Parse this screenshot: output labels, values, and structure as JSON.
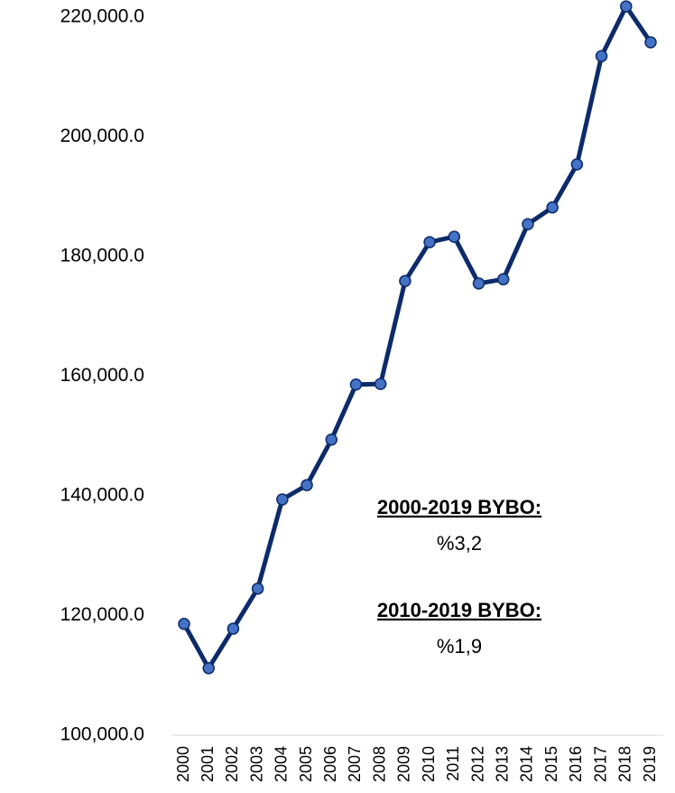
{
  "chart_data": {
    "type": "line",
    "categories": [
      "2000",
      "2001",
      "2002",
      "2003",
      "2004",
      "2005",
      "2006",
      "2007",
      "2008",
      "2009",
      "2010",
      "2011",
      "2012",
      "2013",
      "2014",
      "2015",
      "2016",
      "2017",
      "2018",
      "2019"
    ],
    "series": [
      {
        "color": "#0d2b6b",
        "marker_color": "#4472c4",
        "values": [
          118600,
          111200,
          117800,
          124500,
          139400,
          141800,
          149400,
          158600,
          158700,
          175900,
          182400,
          183300,
          175500,
          176200,
          185400,
          188200,
          195400,
          213500,
          221800,
          215800
        ]
      }
    ],
    "ylim": [
      100000,
      222000
    ],
    "yticks": [
      {
        "value": 100000,
        "label": "100,000.0"
      },
      {
        "value": 120000,
        "label": "120,000.0"
      },
      {
        "value": 140000,
        "label": "140,000.0"
      },
      {
        "value": 160000,
        "label": "160,000.0"
      },
      {
        "value": 180000,
        "label": "180,000.0"
      },
      {
        "value": 200000,
        "label": "200,000.0"
      },
      {
        "value": 220000,
        "label": "220,000.0"
      }
    ],
    "grid": false,
    "annotations": [
      "2000-2019 BYBO:",
      "%3,2",
      "2010-2019 BYBO:",
      "%1,9"
    ]
  }
}
